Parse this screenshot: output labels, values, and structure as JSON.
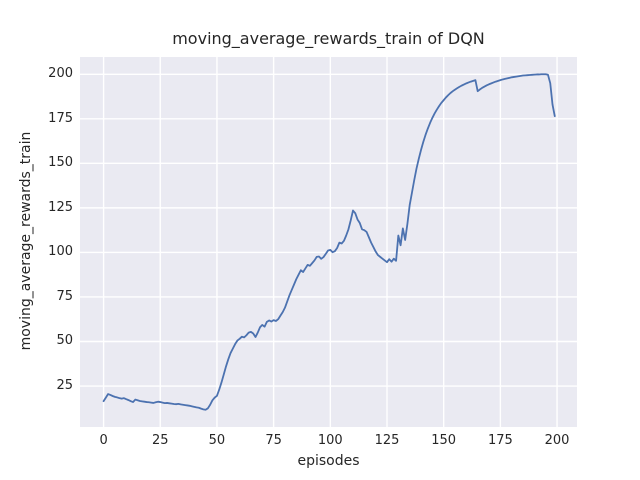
{
  "figure": {
    "background": "#ffffff",
    "axes_background": "#eaeaf2",
    "grid_color": "#ffffff",
    "text_color": "#262626"
  },
  "chart_data": {
    "type": "line",
    "title": "moving_average_rewards_train of DQN",
    "xlabel": "episodes",
    "ylabel": "moving_average_rewards_train",
    "legend": "none",
    "grid": true,
    "line_color": "#4c72b0",
    "line_width": 1.8,
    "xlim": [
      -10.4,
      208.8
    ],
    "ylim": [
      2.0,
      209.7
    ],
    "xticks": [
      0,
      25,
      50,
      75,
      100,
      125,
      150,
      175,
      200
    ],
    "yticks": [
      25,
      50,
      75,
      100,
      125,
      150,
      175,
      200
    ],
    "series": [
      {
        "name": "moving_average_rewards_train",
        "x": [
          0,
          1,
          2,
          3,
          4,
          5,
          6,
          7,
          8,
          9,
          10,
          11,
          12,
          13,
          14,
          15,
          16,
          17,
          18,
          19,
          20,
          21,
          22,
          23,
          24,
          25,
          26,
          27,
          28,
          29,
          30,
          31,
          32,
          33,
          34,
          35,
          36,
          37,
          38,
          39,
          40,
          41,
          42,
          43,
          44,
          45,
          46,
          47,
          48,
          49,
          50,
          51,
          52,
          53,
          54,
          55,
          56,
          57,
          58,
          59,
          60,
          61,
          62,
          63,
          64,
          65,
          66,
          67,
          68,
          69,
          70,
          71,
          72,
          73,
          74,
          75,
          76,
          77,
          78,
          79,
          80,
          81,
          82,
          83,
          84,
          85,
          86,
          87,
          88,
          89,
          90,
          91,
          92,
          93,
          94,
          95,
          96,
          97,
          98,
          99,
          100,
          101,
          102,
          103,
          104,
          105,
          106,
          107,
          108,
          109,
          110,
          111,
          112,
          113,
          114,
          115,
          116,
          117,
          118,
          119,
          120,
          121,
          122,
          123,
          124,
          125,
          126,
          127,
          128,
          129,
          130,
          131,
          132,
          133,
          134,
          135,
          136,
          137,
          138,
          139,
          140,
          141,
          142,
          143,
          144,
          145,
          146,
          147,
          148,
          149,
          150,
          151,
          152,
          153,
          154,
          155,
          156,
          157,
          158,
          159,
          160,
          161,
          162,
          163,
          164,
          165,
          166,
          167,
          168,
          169,
          170,
          171,
          172,
          173,
          174,
          175,
          176,
          177,
          178,
          179,
          180,
          181,
          182,
          183,
          184,
          185,
          186,
          187,
          188,
          189,
          190,
          191,
          192,
          193,
          194,
          195,
          196,
          197,
          198,
          199
        ],
        "y": [
          16.5,
          18.5,
          20.5,
          20,
          19.4,
          18.9,
          18.6,
          18.2,
          17.9,
          18.2,
          17.6,
          17.1,
          16.5,
          16,
          17.4,
          17,
          16.6,
          16.4,
          16.2,
          16,
          15.9,
          15.7,
          15.5,
          15.9,
          16.2,
          16,
          15.7,
          15.4,
          15.5,
          15.3,
          15.1,
          14.9,
          14.8,
          15,
          14.7,
          14.5,
          14.3,
          14.1,
          13.9,
          13.6,
          13.3,
          13,
          12.8,
          12.3,
          11.9,
          11.7,
          12.5,
          14.5,
          17,
          18.5,
          19.5,
          23,
          27,
          31.5,
          36,
          40,
          43.5,
          46,
          48.5,
          50.5,
          51.5,
          52.7,
          52.3,
          53.5,
          55,
          55.4,
          54.5,
          52.5,
          55,
          58,
          59.3,
          58.3,
          61,
          61.8,
          61.2,
          62,
          61.5,
          62.5,
          64.5,
          66.5,
          69,
          72.5,
          76,
          79,
          82,
          85,
          87.5,
          90,
          89,
          91,
          93,
          92.5,
          94,
          95.5,
          97.5,
          97.7,
          96.4,
          97.4,
          99.2,
          101.1,
          101.4,
          100.1,
          100.7,
          102.5,
          105.5,
          105,
          106.5,
          109.5,
          113,
          118,
          123.5,
          122,
          118.5,
          116.5,
          113,
          112.5,
          111.5,
          108.5,
          105.5,
          103,
          100.5,
          98.5,
          97.5,
          96.5,
          95.5,
          94.5,
          96.2,
          94.8,
          96.5,
          95.3,
          109.5,
          104,
          113.5,
          107,
          116,
          126.5,
          133.5,
          140.5,
          147,
          152.5,
          157.5,
          162,
          166,
          169.5,
          172.7,
          175.5,
          178,
          180.2,
          182.2,
          184,
          185.5,
          187,
          188.3,
          189.5,
          190.5,
          191.4,
          192.2,
          193,
          193.7,
          194.3,
          194.9,
          195.4,
          195.9,
          196.3,
          196.7,
          190.5,
          191.5,
          192.4,
          193.1,
          193.8,
          194.4,
          194.9,
          195.4,
          195.9,
          196.3,
          196.7,
          197.1,
          197.4,
          197.7,
          198,
          198.3,
          198.5,
          198.7,
          198.9,
          199.1,
          199.3,
          199.4,
          199.5,
          199.6,
          199.7,
          199.8,
          199.9,
          199.9,
          200,
          200,
          200,
          199.7,
          195,
          183,
          176.5
        ]
      }
    ]
  }
}
